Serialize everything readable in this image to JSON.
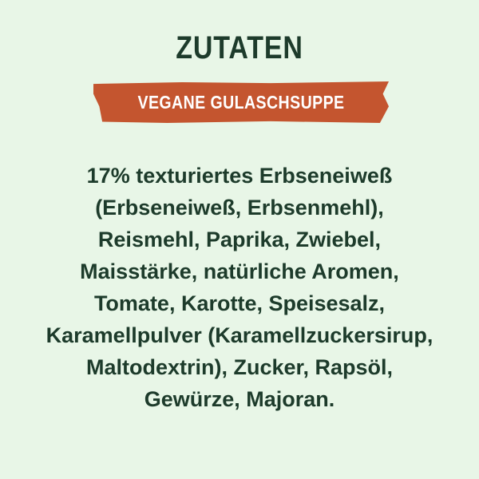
{
  "title": "ZUTATEN",
  "subtitle": "VEGANE GULASCHSUPPE",
  "ingredients_lines": [
    "17% texturiertes Erbseneiweß",
    "(Erbseneiweß, Erbsenmehl),",
    "Reismehl, Paprika, Zwiebel,",
    "Maisstärke, natürliche Aromen,",
    "Tomate, Karotte, Speisesalz,",
    "Karamellpulver (Karamellzuckersirup,",
    "Maltodextrin), Zucker, Rapsöl,",
    "Gewürze, Majoran."
  ],
  "colors": {
    "background": "#e8f6e7",
    "text": "#1d3b2b",
    "banner": "#c4552f"
  }
}
